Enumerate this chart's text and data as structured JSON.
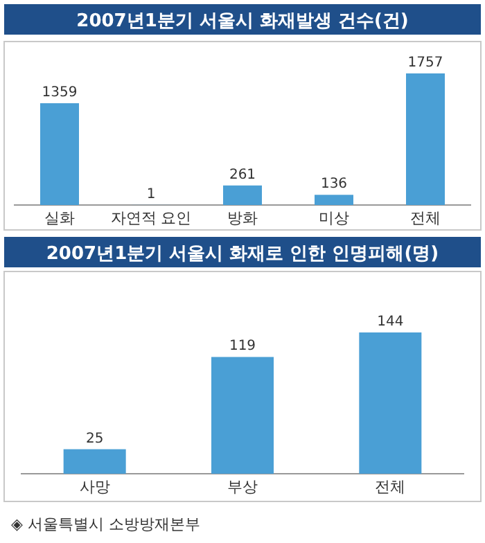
{
  "chart_data": [
    {
      "type": "bar",
      "title": "2007년1분기 서울시 화재발생 건수(건)",
      "categories": [
        "실화",
        "자연적 요인",
        "방화",
        "미상",
        "전체"
      ],
      "values": [
        1359,
        1,
        261,
        136,
        1757
      ],
      "color": "#4a9fd5",
      "data_labels": true
    },
    {
      "type": "bar",
      "title": "2007년1분기 서울시 화재로 인한 인명피해(명)",
      "categories": [
        "사망",
        "부상",
        "전체"
      ],
      "values": [
        25,
        119,
        144
      ],
      "color": "#4a9fd5",
      "data_labels": true,
      "annotations": [
        "◈ 서울특별시 소방방재본부"
      ]
    }
  ]
}
